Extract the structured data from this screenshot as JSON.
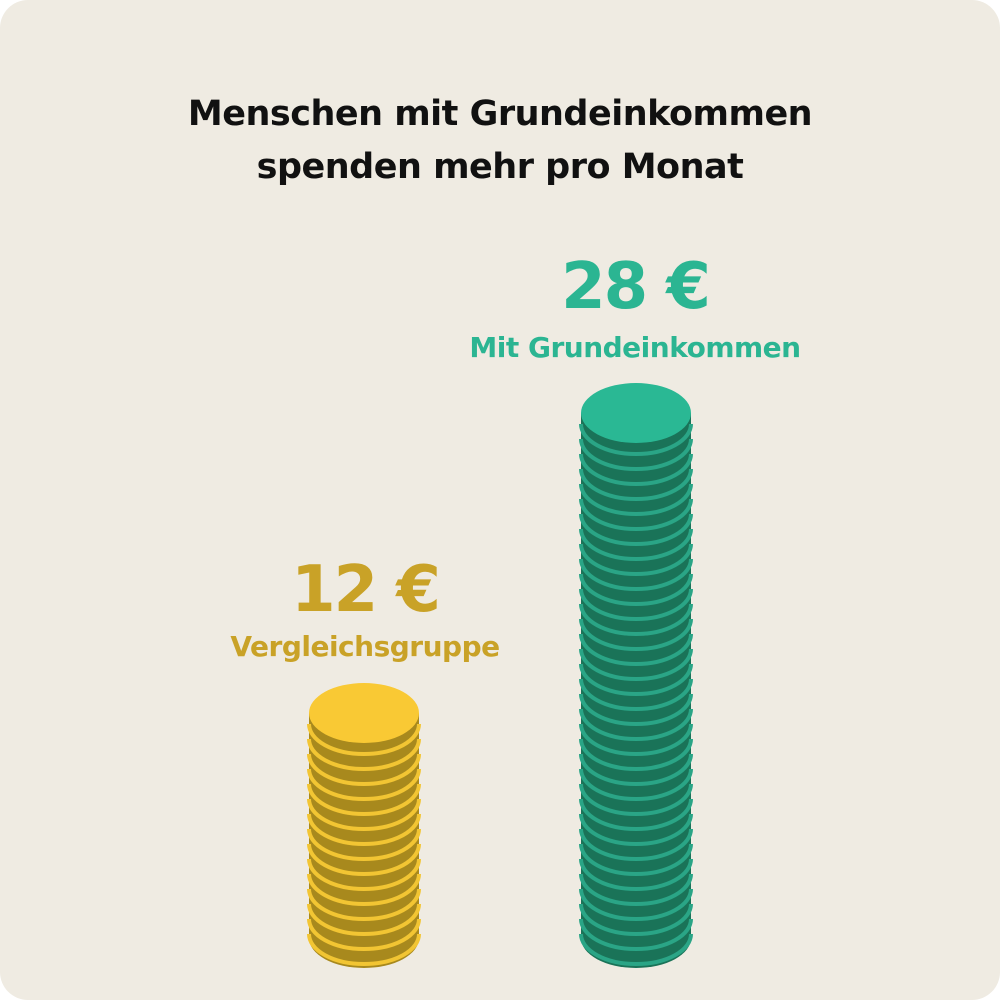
{
  "title_lines": [
    "Menschen mit Grundeinkommen",
    "spenden mehr pro Monat"
  ],
  "colors": {
    "background": "#efebe2",
    "title": "#111111",
    "gold_label": "#c9a227",
    "gold_top": "#f9c934",
    "gold_side": "#a8891d",
    "gold_stripe": "#f2c533",
    "green_label": "#2bb592",
    "green_top": "#2ab894",
    "green_side": "#1a7358",
    "green_stripe": "#2aa586"
  },
  "chart_data": {
    "type": "bar",
    "categories": [
      "Vergleichsgruppe",
      "Mit Grundeinkommen"
    ],
    "values": [
      12,
      28
    ],
    "value_labels": [
      "12 €",
      "28 €"
    ],
    "unit": "€"
  }
}
